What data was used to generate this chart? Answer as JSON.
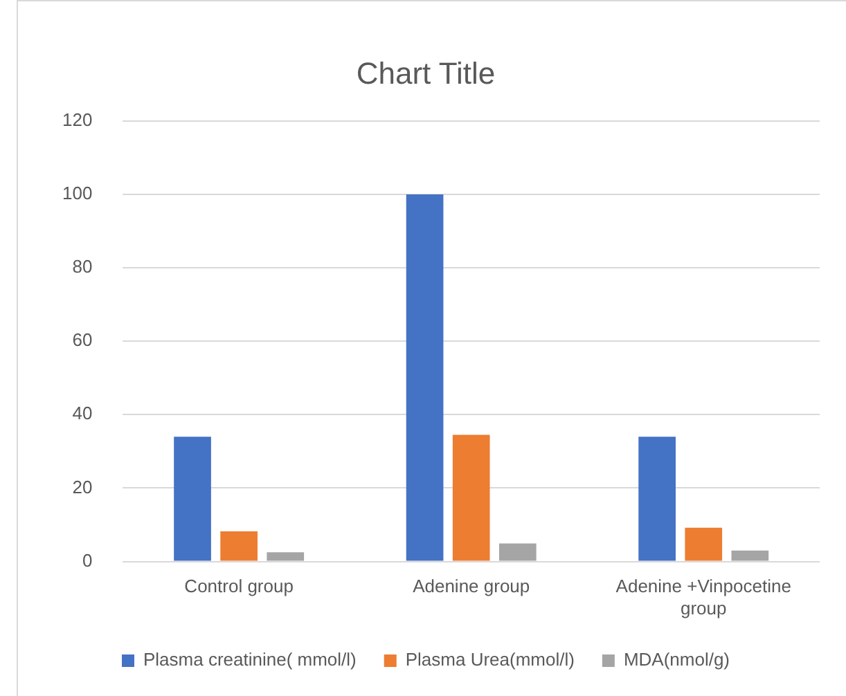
{
  "chart_data": {
    "type": "bar",
    "title": "Chart Title",
    "categories": [
      "Control group",
      "Adenine group",
      "Adenine +Vinpocetine group"
    ],
    "series": [
      {
        "name": "Plasma creatinine( mmol/l)",
        "color": "#4472c4",
        "values": [
          34,
          100,
          34
        ]
      },
      {
        "name": "Plasma Urea(mmol/l)",
        "color": "#ed7d31",
        "values": [
          8.2,
          34.5,
          9.2
        ]
      },
      {
        "name": "MDA(nmol/g)",
        "color": "#a5a5a5",
        "values": [
          2.5,
          4.9,
          3
        ]
      }
    ],
    "ylim": [
      0,
      120
    ],
    "yticks": [
      0,
      20,
      40,
      60,
      80,
      100,
      120
    ],
    "grid": "y",
    "legend": "bottom"
  }
}
